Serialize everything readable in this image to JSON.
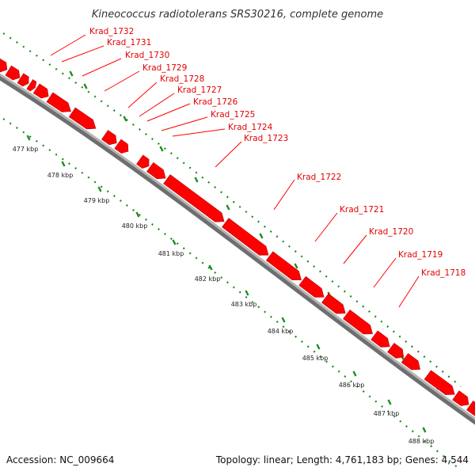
{
  "title": "Kineococcus radiotolerans SRS30216, complete genome",
  "footer": {
    "accession": "Accession: NC_009664",
    "topology": "Topology: linear; Length: 4,761,183 bp; Genes: 4,544"
  },
  "colors": {
    "gene": "#ff0000",
    "gene_label": "#e30000",
    "backbone": "#8c8c8c",
    "ruler": "#1a8c1a"
  },
  "ticks": [
    "477 kbp",
    "478 kbp",
    "479 kbp",
    "480 kbp",
    "481 kbp",
    "482 kbp",
    "483 kbp",
    "484 kbp",
    "485 kbp",
    "486 kbp",
    "487 kbp",
    "488 kbp"
  ],
  "genes": [
    {
      "name": "Krad_1732"
    },
    {
      "name": "Krad_1731"
    },
    {
      "name": "Krad_1730"
    },
    {
      "name": "Krad_1729"
    },
    {
      "name": "Krad_1728"
    },
    {
      "name": "Krad_1727"
    },
    {
      "name": "Krad_1726"
    },
    {
      "name": "Krad_1725"
    },
    {
      "name": "Krad_1724"
    },
    {
      "name": "Krad_1723"
    },
    {
      "name": "Krad_1722"
    },
    {
      "name": "Krad_1721"
    },
    {
      "name": "Krad_1720"
    },
    {
      "name": "Krad_1719"
    },
    {
      "name": "Krad_1718"
    }
  ]
}
